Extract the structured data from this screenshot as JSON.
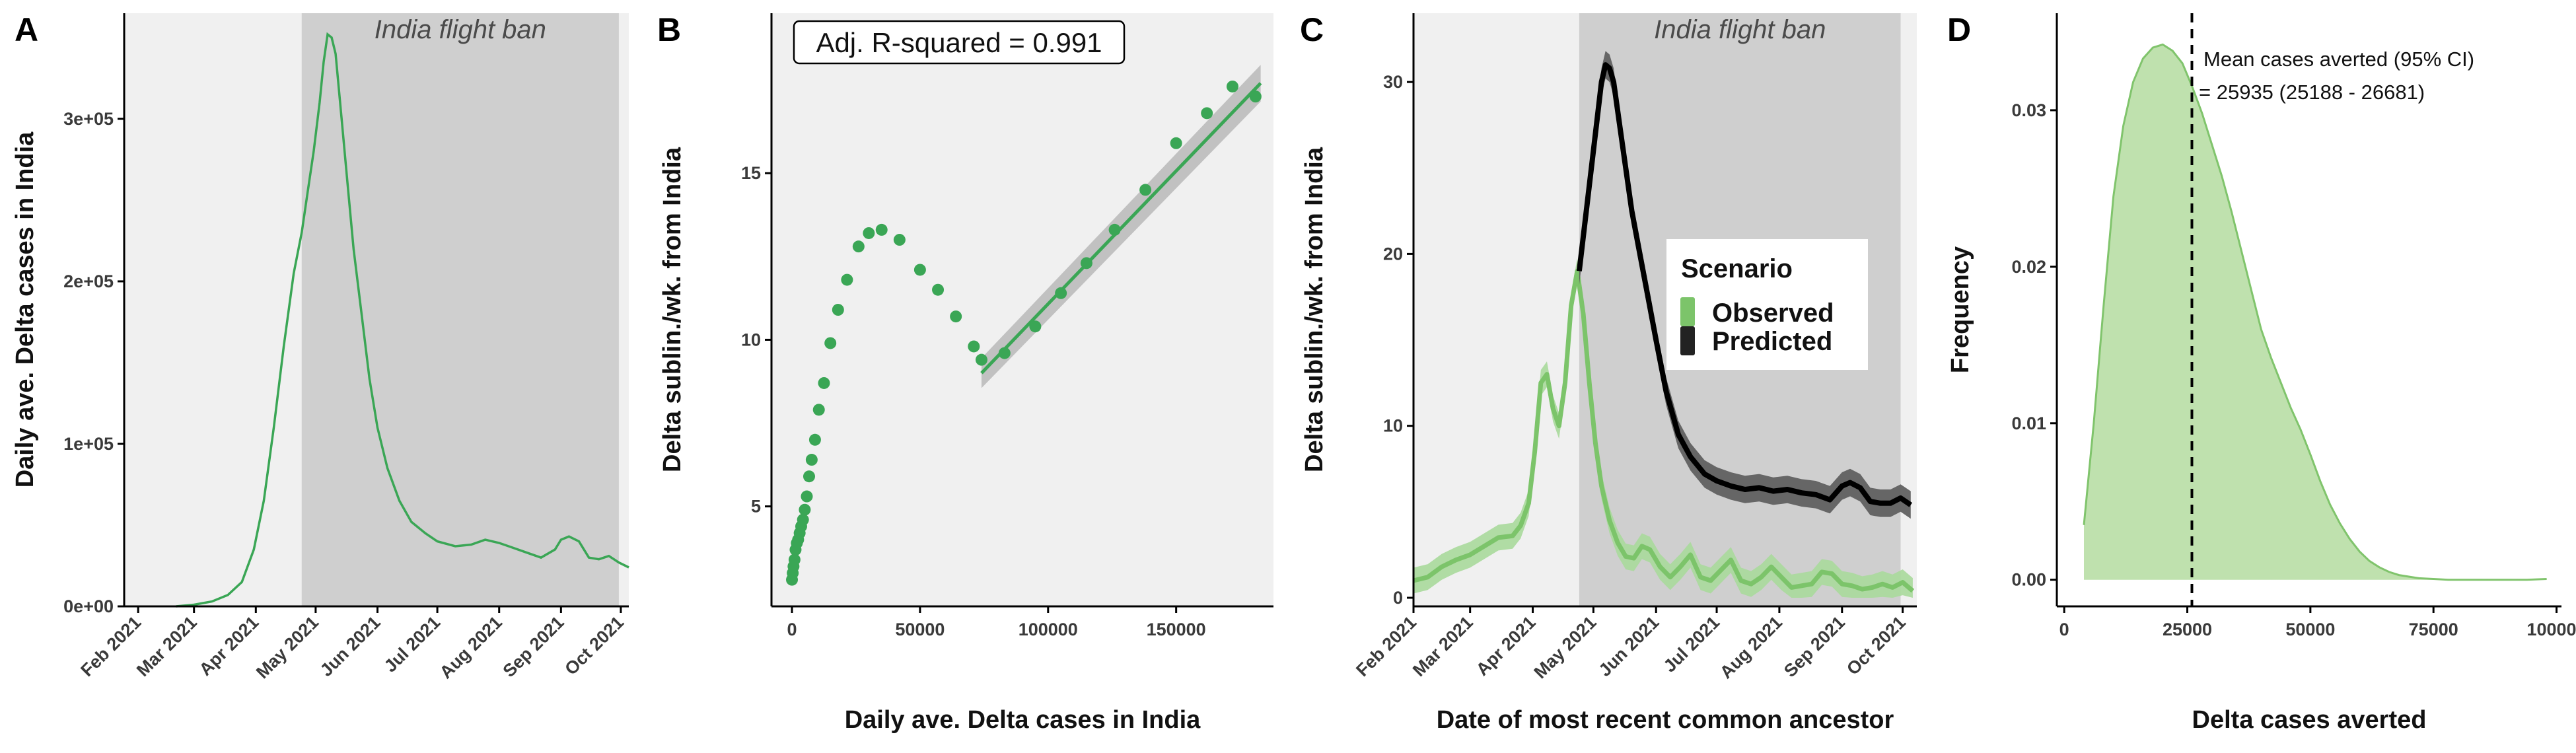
{
  "colors": {
    "green": "#3aa655",
    "light_green": "#7cc46a",
    "band_green": "#a9d99b",
    "density_fill": "#bfe1ae",
    "density_line": "#80c46c",
    "predicted": "#000000",
    "predicted_band": "#5a5a5a",
    "panel_bg": "#f0f0f0",
    "ban_shade": "#cfcfcf"
  },
  "chart_data": [
    {
      "panel": "A",
      "type": "line",
      "xlabel": "",
      "ylabel": "Daily ave. Delta cases in India",
      "x_ticks": [
        "Feb 2021",
        "Mar 2021",
        "Apr 2021",
        "May 2021",
        "Jun 2021",
        "Jul 2021",
        "Aug 2021",
        "Sep 2021",
        "Oct 2021"
      ],
      "y_ticks": [
        "0e+00",
        "1e+05",
        "2e+05",
        "3e+05"
      ],
      "y_tick_values": [
        0,
        100000,
        200000,
        300000
      ],
      "xlim": [
        "2021-01-25",
        "2021-10-05"
      ],
      "ylim": [
        0,
        365000
      ],
      "shaded_region": {
        "label": "India flight ban",
        "from": "2021-04-24",
        "to": "2021-09-30"
      },
      "series": [
        {
          "x": [
            "2021-02-20",
            "2021-03-01",
            "2021-03-10",
            "2021-03-18",
            "2021-03-25",
            "2021-03-31",
            "2021-04-05",
            "2021-04-10",
            "2021-04-15",
            "2021-04-20",
            "2021-04-24",
            "2021-04-27",
            "2021-04-30",
            "2021-05-03",
            "2021-05-05",
            "2021-05-07",
            "2021-05-09",
            "2021-05-11",
            "2021-05-14",
            "2021-05-17",
            "2021-05-20",
            "2021-05-24",
            "2021-05-28",
            "2021-06-01",
            "2021-06-06",
            "2021-06-12",
            "2021-06-18",
            "2021-06-25",
            "2021-07-01",
            "2021-07-10",
            "2021-07-18",
            "2021-07-25",
            "2021-08-01",
            "2021-08-08",
            "2021-08-15",
            "2021-08-22",
            "2021-08-29",
            "2021-09-01",
            "2021-09-05",
            "2021-09-10",
            "2021-09-15",
            "2021-09-20",
            "2021-09-25",
            "2021-09-30",
            "2021-10-05"
          ],
          "y": [
            0,
            1000,
            3000,
            7000,
            15000,
            35000,
            65000,
            110000,
            160000,
            205000,
            230000,
            255000,
            280000,
            310000,
            335000,
            352000,
            350000,
            340000,
            300000,
            260000,
            220000,
            180000,
            140000,
            110000,
            85000,
            65000,
            52000,
            45000,
            40000,
            37000,
            38000,
            41000,
            39000,
            36000,
            33000,
            30000,
            35000,
            41000,
            43000,
            40000,
            30000,
            29000,
            31000,
            27000,
            24000
          ]
        }
      ]
    },
    {
      "panel": "B",
      "type": "scatter",
      "xlabel": "Daily ave. Delta cases in India",
      "ylabel": "Delta sublin./wk. from India",
      "x_ticks": [
        "0",
        "50000",
        "100000",
        "150000"
      ],
      "y_ticks": [
        "5",
        "10",
        "15"
      ],
      "xlim": [
        -8000,
        188000
      ],
      "ylim": [
        2.0,
        19.8
      ],
      "annotation": "Adj. R-squared = 0.991",
      "points": {
        "x": [
          0,
          300,
          600,
          1000,
          1400,
          1900,
          2400,
          3000,
          3600,
          4300,
          5000,
          5800,
          6700,
          7700,
          9000,
          10500,
          12500,
          15000,
          18000,
          21500,
          26000,
          30000,
          35000,
          42000,
          50000,
          57000,
          64000,
          71000,
          74000,
          83000,
          95000,
          105000,
          115000,
          126000,
          138000,
          150000,
          162000,
          172000,
          181000
        ],
        "y": [
          2.8,
          3.0,
          3.2,
          3.4,
          3.7,
          3.9,
          4.0,
          4.2,
          4.4,
          4.6,
          4.9,
          5.3,
          5.9,
          6.4,
          7.0,
          7.9,
          8.7,
          9.9,
          10.9,
          11.8,
          12.8,
          13.2,
          13.3,
          13.0,
          12.1,
          11.5,
          10.7,
          9.8,
          9.4,
          9.6,
          10.4,
          11.4,
          12.3,
          13.3,
          14.5,
          15.9,
          16.8,
          17.6,
          17.3
        ]
      },
      "fit_line": {
        "x": [
          74000,
          183000
        ],
        "y": [
          9.0,
          17.7
        ]
      }
    },
    {
      "panel": "C",
      "type": "line",
      "xlabel": "Date of most recent common ancestor",
      "ylabel": "Delta sublin./wk. from India",
      "x_ticks": [
        "Feb 2021",
        "Mar 2021",
        "Apr 2021",
        "May 2021",
        "Jun 2021",
        "Jul 2021",
        "Aug 2021",
        "Sep 2021",
        "Oct 2021"
      ],
      "y_ticks": [
        "0",
        "10",
        "20",
        "30"
      ],
      "y_tick_values": [
        0,
        10,
        20,
        30
      ],
      "xlim": [
        "2021-02-01",
        "2021-10-08"
      ],
      "ylim": [
        -0.5,
        34
      ],
      "shaded_region": {
        "label": "India flight ban",
        "from": "2021-04-24",
        "to": "2021-09-30"
      },
      "legend": {
        "title": "Scenario",
        "placement": "right",
        "items": [
          "Observed",
          "Predicted"
        ]
      },
      "series": [
        {
          "name": "Observed",
          "x": [
            "2021-02-01",
            "2021-02-08",
            "2021-02-15",
            "2021-02-22",
            "2021-03-01",
            "2021-03-08",
            "2021-03-15",
            "2021-03-22",
            "2021-03-26",
            "2021-03-30",
            "2021-04-02",
            "2021-04-05",
            "2021-04-08",
            "2021-04-11",
            "2021-04-14",
            "2021-04-17",
            "2021-04-20",
            "2021-04-23",
            "2021-04-26",
            "2021-04-29",
            "2021-05-02",
            "2021-05-05",
            "2021-05-09",
            "2021-05-13",
            "2021-05-17",
            "2021-05-21",
            "2021-05-25",
            "2021-05-29",
            "2021-06-03",
            "2021-06-08",
            "2021-06-13",
            "2021-06-18",
            "2021-06-23",
            "2021-06-28",
            "2021-07-03",
            "2021-07-08",
            "2021-07-13",
            "2021-07-18",
            "2021-07-23",
            "2021-07-28",
            "2021-08-02",
            "2021-08-07",
            "2021-08-12",
            "2021-08-17",
            "2021-08-22",
            "2021-08-27",
            "2021-09-01",
            "2021-09-06",
            "2021-09-11",
            "2021-09-16",
            "2021-09-21",
            "2021-09-26",
            "2021-10-01",
            "2021-10-06"
          ],
          "y": [
            1.0,
            1.2,
            1.8,
            2.2,
            2.5,
            3.0,
            3.5,
            3.6,
            4.2,
            5.5,
            8.5,
            12.5,
            13.0,
            11.0,
            10.0,
            12.5,
            17.0,
            19.0,
            16.5,
            12.5,
            9.0,
            6.5,
            4.5,
            3.2,
            2.4,
            2.3,
            3.0,
            2.8,
            1.8,
            1.2,
            1.8,
            2.5,
            1.2,
            1.0,
            1.6,
            2.2,
            1.0,
            0.8,
            1.2,
            1.8,
            1.2,
            0.6,
            0.7,
            0.8,
            1.5,
            1.4,
            0.8,
            0.7,
            0.5,
            0.6,
            0.8,
            0.6,
            0.9,
            0.4
          ]
        },
        {
          "name": "Predicted",
          "x": [
            "2021-04-24",
            "2021-04-27",
            "2021-04-30",
            "2021-05-03",
            "2021-05-05",
            "2021-05-07",
            "2021-05-09",
            "2021-05-11",
            "2021-05-14",
            "2021-05-17",
            "2021-05-20",
            "2021-05-24",
            "2021-05-28",
            "2021-06-01",
            "2021-06-06",
            "2021-06-12",
            "2021-06-18",
            "2021-06-25",
            "2021-07-01",
            "2021-07-08",
            "2021-07-15",
            "2021-07-22",
            "2021-07-29",
            "2021-08-05",
            "2021-08-12",
            "2021-08-19",
            "2021-08-26",
            "2021-09-01",
            "2021-09-05",
            "2021-09-10",
            "2021-09-15",
            "2021-09-20",
            "2021-09-25",
            "2021-09-30",
            "2021-10-05"
          ],
          "y": [
            19.0,
            22.0,
            25.0,
            28.0,
            30.0,
            31.0,
            30.8,
            30.0,
            27.5,
            25.0,
            22.5,
            20.0,
            17.5,
            15.0,
            12.0,
            9.5,
            8.2,
            7.2,
            6.8,
            6.5,
            6.3,
            6.4,
            6.2,
            6.3,
            6.1,
            6.0,
            5.7,
            6.5,
            6.7,
            6.4,
            5.6,
            5.5,
            5.5,
            5.8,
            5.4
          ]
        }
      ]
    },
    {
      "panel": "D",
      "type": "area",
      "xlabel": "Delta cases averted",
      "ylabel": "Frequency",
      "x_ticks": [
        "0",
        "25000",
        "50000",
        "75000",
        "100000"
      ],
      "y_ticks": [
        "0.00",
        "0.01",
        "0.02",
        "0.03"
      ],
      "xlim": [
        -1500,
        101000
      ],
      "ylim": [
        -0.0017,
        0.0362
      ],
      "mean_line": 25935,
      "annotation": [
        "Mean cases averted (95% CI)",
        "= 25935 (25188 - 26681)"
      ],
      "series": [
        {
          "x": [
            4000,
            6000,
            8000,
            10000,
            12000,
            14000,
            16000,
            18000,
            20000,
            22000,
            24000,
            26000,
            28000,
            30000,
            32000,
            34000,
            36000,
            38000,
            40000,
            42000,
            44000,
            46000,
            48000,
            50000,
            52000,
            54000,
            56000,
            58000,
            60000,
            62000,
            64000,
            66000,
            68000,
            70000,
            72000,
            75000,
            78000,
            82000,
            86000,
            90000,
            94000,
            98000
          ],
          "y": [
            0.0035,
            0.01,
            0.0175,
            0.0245,
            0.029,
            0.0318,
            0.0333,
            0.034,
            0.0342,
            0.0338,
            0.033,
            0.0315,
            0.0298,
            0.0278,
            0.0258,
            0.0235,
            0.021,
            0.0185,
            0.016,
            0.0142,
            0.0126,
            0.011,
            0.0096,
            0.008,
            0.0063,
            0.0048,
            0.0036,
            0.0026,
            0.0018,
            0.0012,
            0.0008,
            0.0005,
            0.0003,
            0.0002,
            0.0001,
            5e-05,
            0.0,
            0.0,
            0.0,
            0.0,
            0.0,
            5e-05
          ]
        }
      ]
    }
  ],
  "panel_labels": [
    "A",
    "B",
    "C",
    "D"
  ]
}
